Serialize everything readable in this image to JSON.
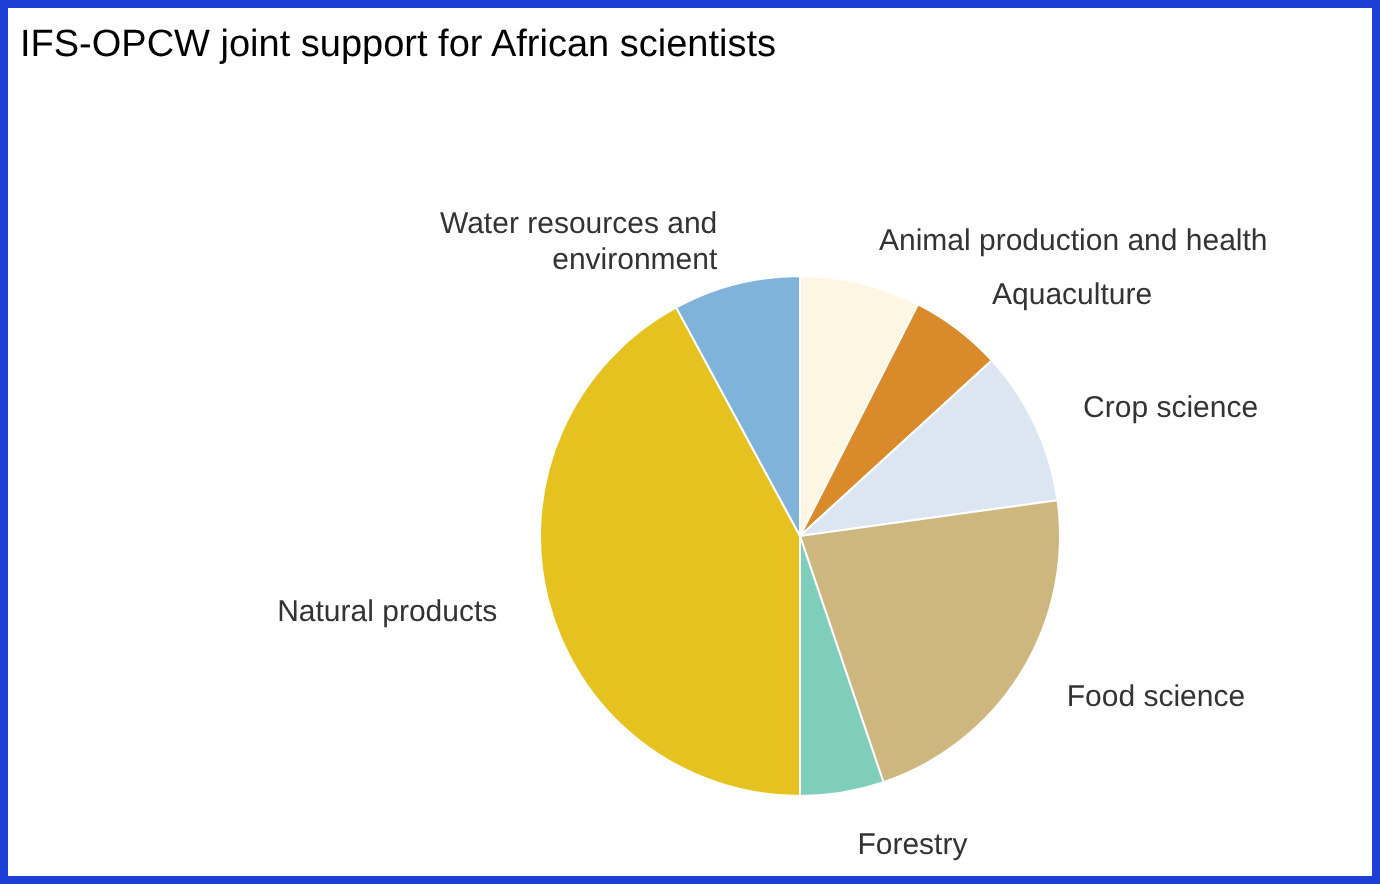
{
  "chart_data": {
    "type": "pie",
    "title": "IFS-OPCW joint support for African scientists",
    "categories": [
      "Animal production and health",
      "Aquaculture",
      "Crop science",
      "Food science",
      "Forestry",
      "Natural products",
      "Water resources and environment"
    ],
    "values": [
      7.5,
      5.7,
      9.6,
      22,
      5.2,
      42.1,
      7.9
    ],
    "colors": [
      "#fdf6e3",
      "#d98a2b",
      "#dce6f2",
      "#cdb77f",
      "#7fcdbb",
      "#e5c21f",
      "#7fb3d9"
    ]
  }
}
